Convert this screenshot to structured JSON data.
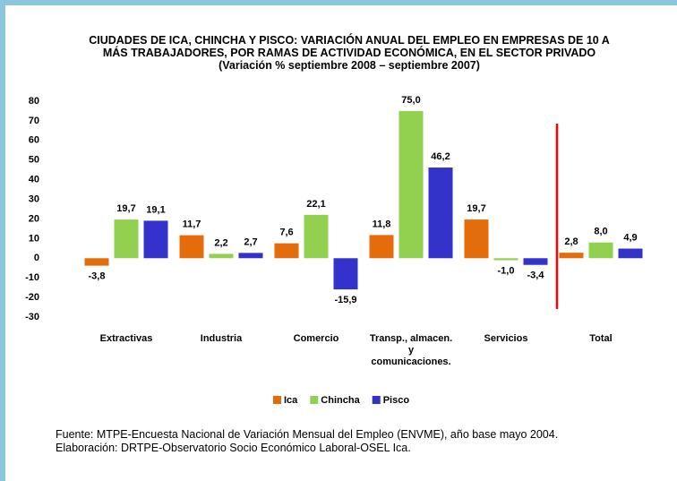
{
  "chart_data": {
    "type": "bar",
    "title": "CIUDADES DE ICA, CHINCHA Y PISCO: VARIACIÓN ANUAL DEL EMPLEO EN EMPRESAS DE 10 A\nMÁS TRABAJADORES, POR RAMAS DE ACTIVIDAD ECONÓMICA, EN EL SECTOR PRIVADO\n(Variación % septiembre 2008 – septiembre 2007)",
    "categories": [
      "Extractivas",
      "Industria",
      "Comercio",
      "Transp., almacen.\ny\ncomunicaciones.",
      "Servicios",
      "Total"
    ],
    "series": [
      {
        "name": "Ica",
        "color": "#e46c0a",
        "values": [
          -3.8,
          11.7,
          7.6,
          11.8,
          19.7,
          2.8
        ],
        "value_labels": [
          "-3,8",
          "11,7",
          "7,6",
          "11,8",
          "19,7",
          "2,8"
        ]
      },
      {
        "name": "Chincha",
        "color": "#92d050",
        "values": [
          19.7,
          2.2,
          22.1,
          75.0,
          -1.0,
          8.0
        ],
        "value_labels": [
          "19,7",
          "2,2",
          "22,1",
          "75,0",
          "-1,0",
          "8,0"
        ]
      },
      {
        "name": "Pisco",
        "color": "#3333cc",
        "values": [
          19.1,
          2.7,
          -15.9,
          46.2,
          -3.4,
          4.9
        ],
        "value_labels": [
          "19,1",
          "2,7",
          "-15,9",
          "46,2",
          "-3,4",
          "4,9"
        ]
      }
    ],
    "ylim": [
      -30,
      80
    ],
    "yticks": [
      -30,
      -20,
      -10,
      0,
      10,
      20,
      30,
      40,
      50,
      60,
      70,
      80
    ],
    "grid": false,
    "legend": "bottom",
    "source": "Fuente: MTPE-Encuesta Nacional de Variación Mensual del Empleo (ENVME), año base mayo  2004.\nElaboración: DRTPE-Observatorio Socio Económico Laboral-OSEL Ica."
  }
}
